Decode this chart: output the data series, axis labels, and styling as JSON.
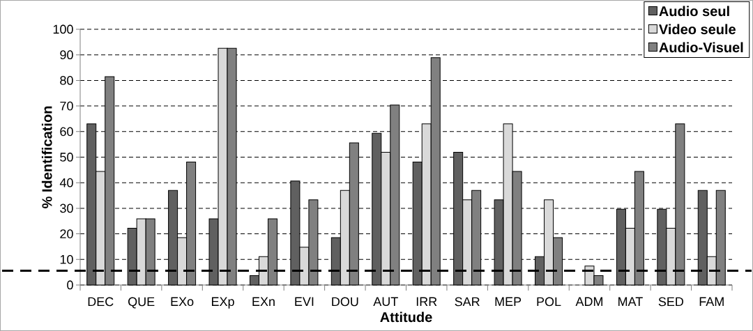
{
  "chart_data": {
    "type": "bar",
    "xlabel": "Attitude",
    "ylabel": "% Identification",
    "categories": [
      "DEC",
      "QUE",
      "EXo",
      "EXp",
      "EXn",
      "EVI",
      "DOU",
      "AUT",
      "IRR",
      "SAR",
      "MEP",
      "POL",
      "ADM",
      "MAT",
      "SED",
      "FAM"
    ],
    "series": [
      {
        "name": "Audio seul",
        "color": "#606060",
        "values": [
          63,
          22.2,
          37,
          25.9,
          3.7,
          40.7,
          18.5,
          59.3,
          48.1,
          51.9,
          33.3,
          11.1,
          0,
          29.6,
          29.6,
          37
        ]
      },
      {
        "name": "Video seule",
        "color": "#d9d9d9",
        "values": [
          44.4,
          25.9,
          18.5,
          92.6,
          11.1,
          14.8,
          37,
          51.9,
          63,
          33.3,
          63,
          33.3,
          7.4,
          22.2,
          22.2,
          11.1
        ]
      },
      {
        "name": "Audio-Visuel",
        "color": "#808080",
        "values": [
          81.5,
          25.9,
          48.1,
          92.6,
          25.9,
          33.3,
          55.6,
          70.4,
          88.9,
          37,
          44.4,
          18.5,
          3.7,
          44.4,
          63,
          37
        ]
      }
    ],
    "ylim": [
      0,
      100
    ],
    "yticks": [
      0,
      10,
      20,
      30,
      40,
      50,
      60,
      70,
      80,
      90,
      100
    ],
    "grid": "y",
    "legend": "top right",
    "ref_lines": [
      {
        "axis": "y",
        "value": 5.6,
        "color": "#000000",
        "line_style": "dashed"
      }
    ]
  }
}
